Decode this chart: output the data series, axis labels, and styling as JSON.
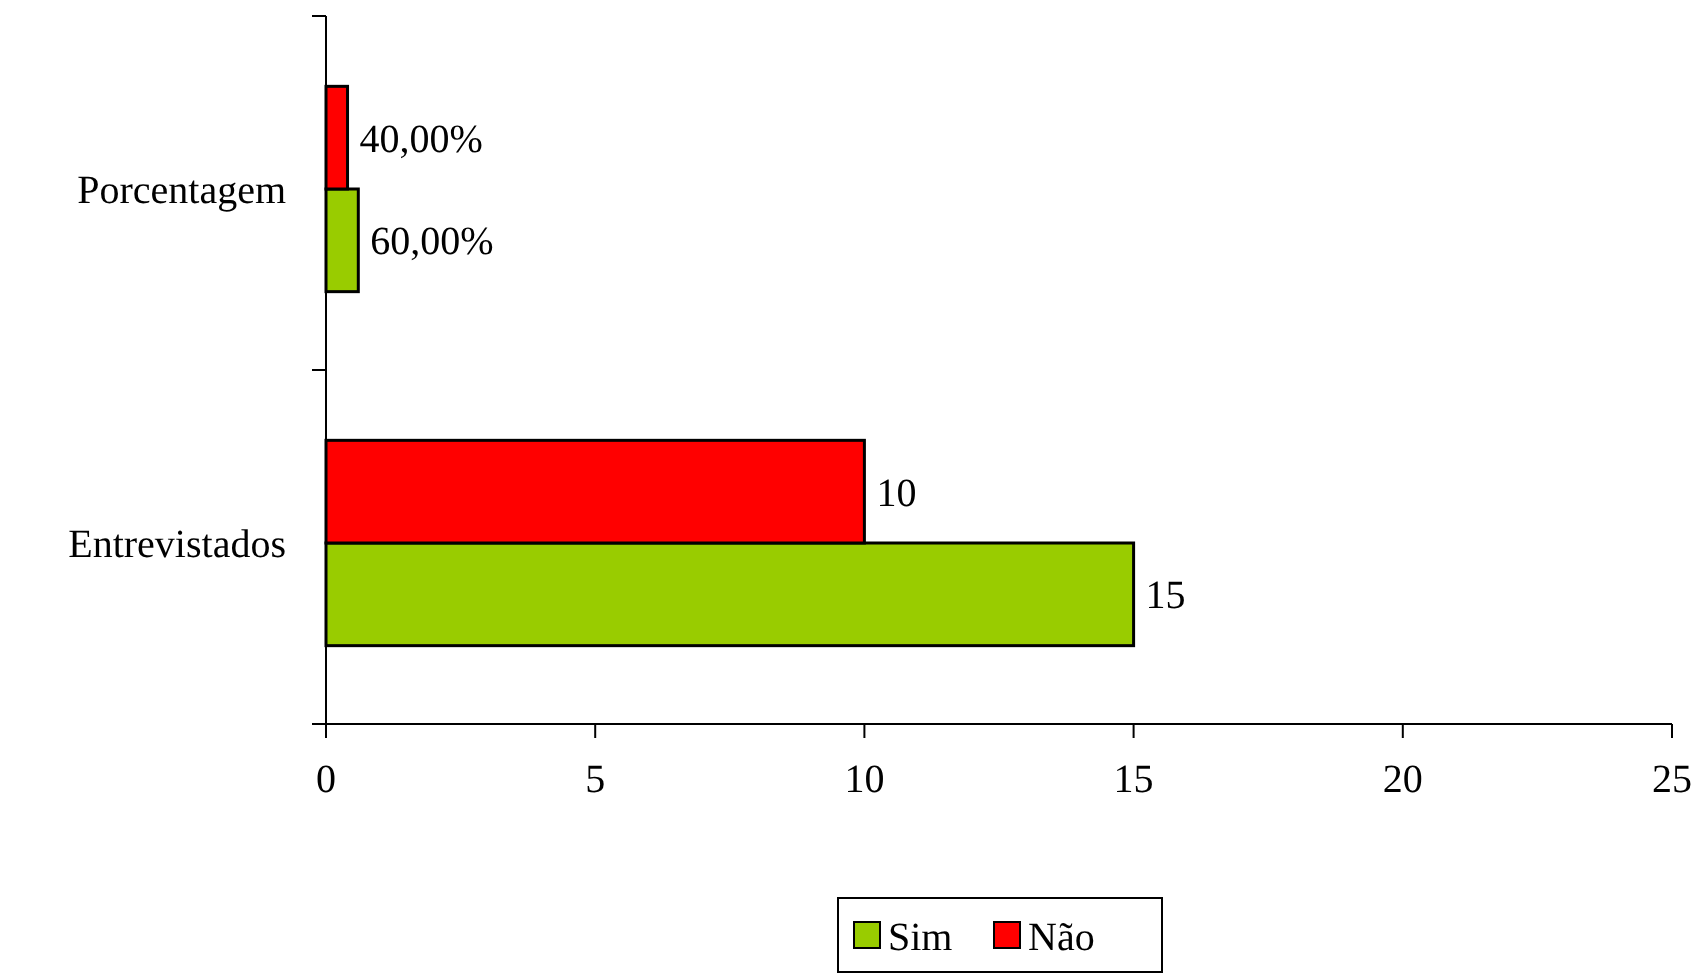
{
  "chart_data": {
    "type": "bar",
    "orientation": "horizontal",
    "categories": [
      "Porcentagem",
      "Entrevistados"
    ],
    "series": [
      {
        "name": "Sim",
        "color": "#99cc00",
        "values": [
          0.6,
          15
        ],
        "value_labels": [
          "60,00%",
          "15"
        ]
      },
      {
        "name": "Não",
        "color": "#ff0000",
        "values": [
          0.4,
          10
        ],
        "value_labels": [
          "40,00%",
          "10"
        ]
      }
    ],
    "xlim": [
      0,
      25
    ],
    "xticks": [
      0,
      5,
      10,
      15,
      20,
      25
    ],
    "grid": false,
    "legend": "bottom"
  }
}
